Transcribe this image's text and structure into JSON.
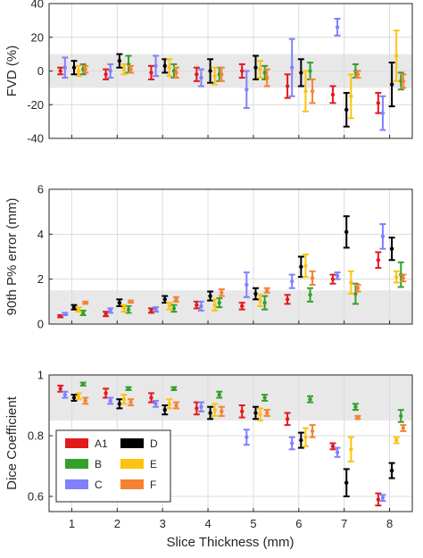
{
  "figure": {
    "xlabel": "Slice Thickness (mm)"
  },
  "series_styles": [
    {
      "name": "A1",
      "color": "#e31a1c",
      "offset": -0.25
    },
    {
      "name": "B",
      "color": "#33a02c",
      "offset": 0.25
    },
    {
      "name": "C",
      "color": "#8080ff",
      "offset": -0.15
    },
    {
      "name": "D",
      "color": "#000000",
      "offset": 0.05
    },
    {
      "name": "E",
      "color": "#ffc20e",
      "offset": 0.15
    },
    {
      "name": "F",
      "color": "#f58231",
      "offset": 0.3
    }
  ],
  "legend": {
    "placement": "lower-left",
    "order": [
      "A1",
      "D",
      "B",
      "E",
      "C",
      "F"
    ]
  },
  "chart_data": [
    {
      "type": "scatter",
      "panel": "fvd",
      "title": "",
      "xlabel": "",
      "ylabel": "FVD (%)",
      "x": [
        1,
        2,
        3,
        4,
        5,
        6,
        7,
        8
      ],
      "xlim": [
        0.5,
        8.5
      ],
      "ylim": [
        -40,
        40
      ],
      "yticks": [
        -40,
        -20,
        0,
        20,
        40
      ],
      "grid": true,
      "shaded_band": [
        -10,
        10
      ],
      "series": [
        {
          "name": "A1",
          "values": [
            0,
            -2,
            -1,
            -2,
            0,
            -9,
            -14,
            -19
          ],
          "err": [
            2,
            3,
            4,
            4,
            4,
            7,
            5,
            6
          ]
        },
        {
          "name": "B",
          "values": [
            1,
            4,
            0,
            -2,
            -1,
            0,
            0,
            -6
          ],
          "err": [
            3,
            5,
            4,
            4,
            4,
            5,
            4,
            5
          ]
        },
        {
          "name": "C",
          "values": [
            2,
            0,
            3,
            -4,
            -11,
            2,
            26,
            -25
          ],
          "err": [
            6,
            4,
            6,
            5,
            11,
            17,
            5,
            10
          ]
        },
        {
          "name": "D",
          "values": [
            2,
            6,
            3,
            0,
            2,
            -1,
            -23,
            -8
          ],
          "err": [
            4,
            4,
            4,
            7,
            7,
            8,
            10,
            13
          ]
        },
        {
          "name": "E",
          "values": [
            0,
            1,
            2,
            -3,
            1,
            -12,
            -15,
            9
          ],
          "err": [
            3,
            3,
            5,
            5,
            5,
            12,
            13,
            15
          ]
        },
        {
          "name": "F",
          "values": [
            1,
            1,
            -1,
            -2,
            -4,
            -12,
            -2,
            -6
          ],
          "err": [
            2,
            2,
            3,
            4,
            5,
            7,
            2,
            4
          ]
        }
      ]
    },
    {
      "type": "scatter",
      "panel": "p90",
      "title": "",
      "xlabel": "",
      "ylabel": "90th P% error (mm)",
      "x": [
        1,
        2,
        3,
        4,
        5,
        6,
        7,
        8
      ],
      "xlim": [
        0.5,
        8.5
      ],
      "ylim": [
        0,
        6
      ],
      "yticks": [
        0,
        2,
        4,
        6
      ],
      "grid": true,
      "shaded_band": [
        0,
        1.5
      ],
      "series": [
        {
          "name": "A1",
          "values": [
            0.35,
            0.45,
            0.6,
            0.85,
            0.8,
            1.1,
            2.0,
            2.85
          ],
          "err": [
            0.05,
            0.1,
            0.1,
            0.15,
            0.15,
            0.2,
            0.2,
            0.35
          ]
        },
        {
          "name": "B",
          "values": [
            0.5,
            0.65,
            0.7,
            0.95,
            0.95,
            1.3,
            1.35,
            2.2
          ],
          "err": [
            0.1,
            0.15,
            0.15,
            0.2,
            0.3,
            0.3,
            0.45,
            0.55
          ]
        },
        {
          "name": "C",
          "values": [
            0.45,
            0.6,
            0.65,
            0.8,
            1.75,
            1.9,
            2.15,
            3.9
          ],
          "err": [
            0.05,
            0.1,
            0.1,
            0.2,
            0.55,
            0.3,
            0.15,
            0.55
          ]
        },
        {
          "name": "D",
          "values": [
            0.75,
            0.95,
            1.1,
            1.25,
            1.35,
            2.55,
            4.1,
            3.35
          ],
          "err": [
            0.1,
            0.15,
            0.15,
            0.2,
            0.25,
            0.45,
            0.7,
            0.5
          ]
        },
        {
          "name": "E",
          "values": [
            0.65,
            0.7,
            0.8,
            0.85,
            1.05,
            2.6,
            1.85,
            2.1
          ],
          "err": [
            0.1,
            0.15,
            0.15,
            0.25,
            0.25,
            0.5,
            0.5,
            0.25
          ]
        },
        {
          "name": "F",
          "values": [
            0.95,
            1.0,
            1.1,
            1.4,
            1.5,
            2.05,
            1.6,
            2.05
          ],
          "err": [
            0.05,
            0.05,
            0.1,
            0.15,
            0.1,
            0.3,
            0.15,
            0.15
          ]
        }
      ]
    },
    {
      "type": "scatter",
      "panel": "dice",
      "title": "",
      "xlabel": "Slice Thickness (mm)",
      "ylabel": "Dice Coefficient",
      "x": [
        1,
        2,
        3,
        4,
        5,
        6,
        7,
        8
      ],
      "xlim": [
        0.5,
        8.5
      ],
      "ylim": [
        0.55,
        1.0
      ],
      "yticks": [
        0.6,
        0.8,
        1
      ],
      "grid": true,
      "shaded_band": [
        0.85,
        1.0
      ],
      "series": [
        {
          "name": "A1",
          "values": [
            0.955,
            0.94,
            0.925,
            0.89,
            0.88,
            0.855,
            0.765,
            0.59
          ],
          "err": [
            0.01,
            0.015,
            0.015,
            0.02,
            0.02,
            0.02,
            0.01,
            0.02
          ]
        },
        {
          "name": "B",
          "values": [
            0.97,
            0.955,
            0.955,
            0.935,
            0.925,
            0.92,
            0.895,
            0.865
          ],
          "err": [
            0.005,
            0.005,
            0.005,
            0.01,
            0.01,
            0.01,
            0.01,
            0.02
          ]
        },
        {
          "name": "C",
          "values": [
            0.935,
            0.915,
            0.905,
            0.895,
            0.795,
            0.775,
            0.745,
            0.595
          ],
          "err": [
            0.01,
            0.01,
            0.01,
            0.015,
            0.025,
            0.02,
            0.015,
            0.01
          ]
        },
        {
          "name": "D",
          "values": [
            0.925,
            0.905,
            0.885,
            0.875,
            0.875,
            0.785,
            0.645,
            0.685
          ],
          "err": [
            0.01,
            0.015,
            0.015,
            0.02,
            0.02,
            0.025,
            0.045,
            0.025
          ]
        },
        {
          "name": "E",
          "values": [
            0.93,
            0.92,
            0.905,
            0.885,
            0.87,
            0.795,
            0.755,
            0.785
          ],
          "err": [
            0.01,
            0.015,
            0.015,
            0.02,
            0.02,
            0.03,
            0.04,
            0.01
          ]
        },
        {
          "name": "F",
          "values": [
            0.915,
            0.91,
            0.9,
            0.88,
            0.875,
            0.815,
            0.86,
            0.825
          ],
          "err": [
            0.01,
            0.01,
            0.01,
            0.015,
            0.01,
            0.02,
            0.005,
            0.01
          ]
        }
      ]
    }
  ]
}
